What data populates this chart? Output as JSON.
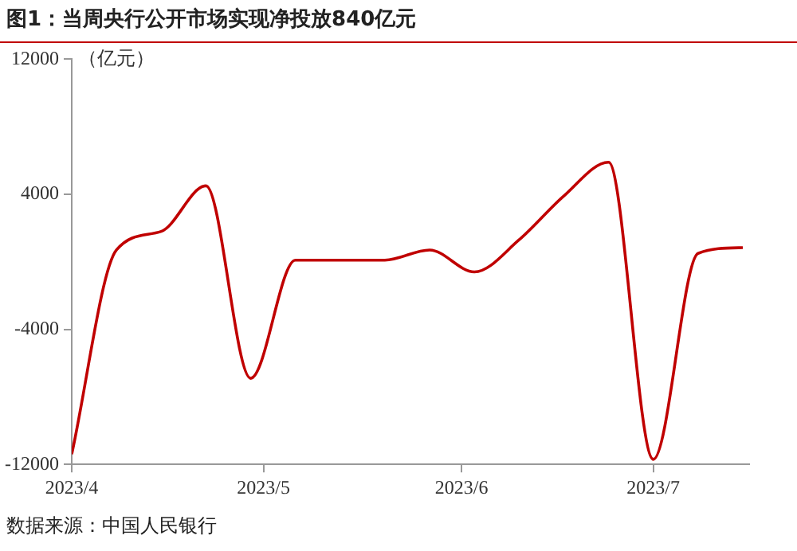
{
  "chart_data": {
    "type": "line",
    "title": "图1：当周央行公开市场实现净投放840亿元",
    "ylabel": "（亿元）",
    "annotations": [
      "数据来源：中国人民银行"
    ],
    "x": [
      "2023-04-01",
      "2023-04-08",
      "2023-04-15",
      "2023-04-22",
      "2023-04-29",
      "2023-05-06",
      "2023-05-13",
      "2023-05-20",
      "2023-05-27",
      "2023-06-03",
      "2023-06-10",
      "2023-06-17",
      "2023-06-24",
      "2023-07-01",
      "2023-07-08",
      "2023-07-15"
    ],
    "series": [
      {
        "color": "#c00000",
        "values": [
          -11400,
          700,
          1800,
          4500,
          -6900,
          100,
          100,
          100,
          700,
          -600,
          1300,
          3900,
          5900,
          -11700,
          500,
          840
        ]
      }
    ],
    "xlim": [
      "2023-04-01",
      "2023-07-16"
    ],
    "xticks": [
      {
        "value": "2023-04-01",
        "label": "2023/4"
      },
      {
        "value": "2023-05-01",
        "label": "2023/5"
      },
      {
        "value": "2023-06-01",
        "label": "2023/6"
      },
      {
        "value": "2023-07-01",
        "label": "2023/7"
      }
    ],
    "ylim": [
      -12000,
      12000
    ],
    "yticks": [
      -12000,
      -4000,
      4000,
      12000
    ],
    "grid": false,
    "legend": false,
    "marker": "none",
    "line_style": "solid"
  }
}
